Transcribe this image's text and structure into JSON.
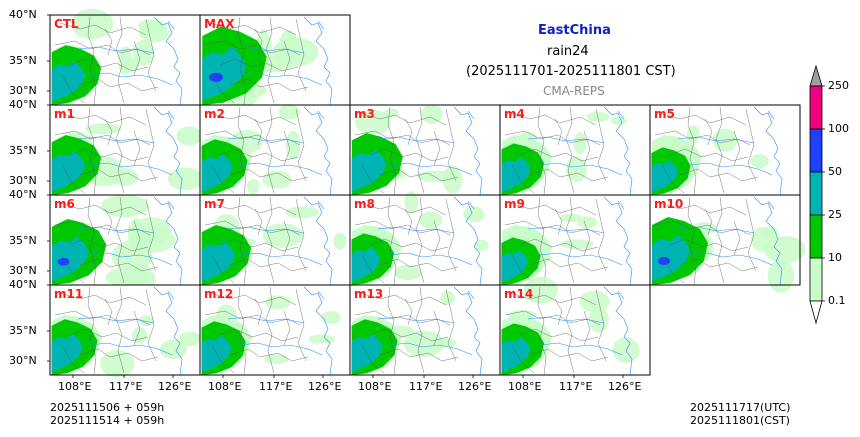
{
  "title": {
    "region": "EastChina",
    "variable": "rain24",
    "period": "(2025111701-2025111801 CST)",
    "source": "CMA-REPS"
  },
  "panels": [
    {
      "id": "CTL",
      "intensity": 0.55
    },
    {
      "id": "MAX",
      "intensity": 1.0
    },
    {
      "id": "m1",
      "intensity": 0.55
    },
    {
      "id": "m2",
      "intensity": 0.45
    },
    {
      "id": "m3",
      "intensity": 0.6
    },
    {
      "id": "m4",
      "intensity": 0.35
    },
    {
      "id": "m5",
      "intensity": 0.25
    },
    {
      "id": "m6",
      "intensity": 0.7
    },
    {
      "id": "m7",
      "intensity": 0.55
    },
    {
      "id": "m8",
      "intensity": 0.35
    },
    {
      "id": "m9",
      "intensity": 0.25
    },
    {
      "id": "m10",
      "intensity": 0.75
    },
    {
      "id": "m11",
      "intensity": 0.45
    },
    {
      "id": "m12",
      "intensity": 0.4
    },
    {
      "id": "m13",
      "intensity": 0.45
    },
    {
      "id": "m14",
      "intensity": 0.35
    }
  ],
  "axes": {
    "lat_ticks": [
      "40°N",
      "35°N",
      "30°N"
    ],
    "lon_ticks": [
      "108°E",
      "117°E",
      "126°E"
    ]
  },
  "colorbar": {
    "levels": [
      "0.1",
      "10",
      "25",
      "50",
      "100",
      "250"
    ],
    "colors": [
      "#c8fcc8",
      "#00c800",
      "#00b4b4",
      "#2040ff",
      "#f00080",
      "#a0a0a0"
    ]
  },
  "footer": {
    "left_line1": "2025111506  +  059h",
    "left_line2": "2025111514  +  059h",
    "right_line1": "2025111717(UTC)",
    "right_line2": "2025111801(CST)"
  },
  "colors": {
    "light_rain": "#c8fcc8",
    "rain_10": "#00c800",
    "rain_25": "#00b4b4",
    "rain_50": "#2040ff",
    "rain_100": "#f00080",
    "river": "#1e90ff",
    "border": "#555555",
    "label": "#ff1a1a",
    "title": "#1020c8"
  }
}
